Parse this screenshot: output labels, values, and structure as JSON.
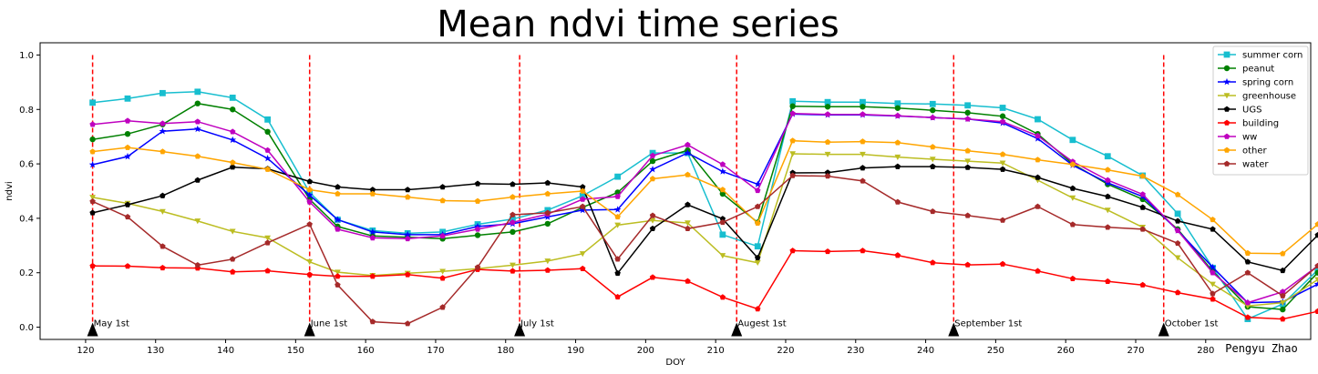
{
  "chart_data": {
    "type": "line",
    "title": "Mean ndvi time series",
    "xlabel": "DOY",
    "ylabel": "ndvi",
    "xlim": [
      113.5,
      295
    ],
    "ylim": [
      -0.045,
      1.045
    ],
    "xticks": [
      120,
      130,
      140,
      150,
      160,
      170,
      180,
      190,
      200,
      210,
      220,
      230,
      240,
      250,
      260,
      270,
      280
    ],
    "yticks": [
      0.0,
      0.2,
      0.4,
      0.6,
      0.8,
      1.0
    ],
    "ytick_labels": [
      "0.0",
      "0.2",
      "0.4",
      "0.6",
      "0.8",
      "1.0"
    ],
    "grid": false,
    "legend_position": "top-right",
    "x": [
      121,
      126,
      131,
      136,
      141,
      146,
      152,
      156,
      161,
      166,
      171,
      176,
      181,
      186,
      191,
      196,
      201,
      206,
      211,
      216,
      221,
      226,
      231,
      236,
      241,
      246,
      251,
      256,
      261,
      266,
      271,
      276,
      281,
      286,
      291,
      296
    ],
    "series": [
      {
        "name": "summer corn",
        "color": "#17becf",
        "marker": "square",
        "values": [
          0.825,
          0.84,
          0.86,
          0.865,
          0.843,
          0.763,
          0.495,
          0.395,
          0.355,
          0.345,
          0.35,
          0.378,
          0.397,
          0.43,
          0.483,
          0.553,
          0.64,
          0.64,
          0.34,
          0.297,
          0.83,
          0.827,
          0.827,
          0.822,
          0.82,
          0.815,
          0.806,
          0.764,
          0.688,
          0.628,
          0.557,
          0.417,
          0.218,
          0.03,
          0.085,
          0.21
        ]
      },
      {
        "name": "peanut",
        "color": "#008000",
        "marker": "circle",
        "values": [
          0.69,
          0.71,
          0.745,
          0.822,
          0.8,
          0.718,
          0.47,
          0.37,
          0.335,
          0.33,
          0.325,
          0.338,
          0.35,
          0.38,
          0.44,
          0.495,
          0.61,
          0.65,
          0.49,
          0.385,
          0.812,
          0.81,
          0.81,
          0.805,
          0.797,
          0.788,
          0.775,
          0.71,
          0.6,
          0.525,
          0.47,
          0.36,
          0.205,
          0.075,
          0.065,
          0.2
        ]
      },
      {
        "name": "spring corn",
        "color": "#0000ff",
        "marker": "star",
        "values": [
          0.597,
          0.627,
          0.72,
          0.728,
          0.688,
          0.62,
          0.485,
          0.395,
          0.35,
          0.34,
          0.34,
          0.37,
          0.38,
          0.405,
          0.43,
          0.432,
          0.58,
          0.64,
          0.572,
          0.525,
          0.783,
          0.78,
          0.78,
          0.776,
          0.77,
          0.765,
          0.75,
          0.693,
          0.595,
          0.53,
          0.48,
          0.355,
          0.22,
          0.09,
          0.093,
          0.158
        ]
      },
      {
        "name": "greenhouse",
        "color": "#bcbd22",
        "marker": "triangle-down",
        "values": [
          0.477,
          0.455,
          0.425,
          0.39,
          0.352,
          0.328,
          0.24,
          0.202,
          0.19,
          0.198,
          0.205,
          0.215,
          0.228,
          0.243,
          0.27,
          0.375,
          0.392,
          0.383,
          0.263,
          0.237,
          0.637,
          0.635,
          0.635,
          0.625,
          0.617,
          0.61,
          0.603,
          0.54,
          0.475,
          0.43,
          0.367,
          0.255,
          0.158,
          0.078,
          0.09,
          0.175
        ]
      },
      {
        "name": "UGS",
        "color": "#000000",
        "marker": "pentagon",
        "values": [
          0.42,
          0.45,
          0.483,
          0.54,
          0.588,
          0.582,
          0.535,
          0.515,
          0.505,
          0.505,
          0.515,
          0.527,
          0.525,
          0.53,
          0.515,
          0.198,
          0.362,
          0.45,
          0.398,
          0.255,
          0.567,
          0.568,
          0.585,
          0.59,
          0.59,
          0.587,
          0.58,
          0.55,
          0.51,
          0.48,
          0.44,
          0.39,
          0.36,
          0.24,
          0.208,
          0.338
        ]
      },
      {
        "name": "building",
        "color": "#ff0000",
        "marker": "pentagon",
        "values": [
          0.225,
          0.224,
          0.218,
          0.217,
          0.203,
          0.207,
          0.193,
          0.187,
          0.187,
          0.193,
          0.18,
          0.212,
          0.206,
          0.209,
          0.215,
          0.111,
          0.183,
          0.169,
          0.11,
          0.067,
          0.281,
          0.278,
          0.281,
          0.264,
          0.237,
          0.229,
          0.232,
          0.206,
          0.178,
          0.168,
          0.155,
          0.127,
          0.103,
          0.036,
          0.03,
          0.058
        ]
      },
      {
        "name": "ww",
        "color": "#bf00bf",
        "marker": "pentagon",
        "values": [
          0.745,
          0.758,
          0.748,
          0.755,
          0.718,
          0.65,
          0.46,
          0.36,
          0.328,
          0.325,
          0.335,
          0.36,
          0.385,
          0.415,
          0.47,
          0.48,
          0.63,
          0.67,
          0.598,
          0.502,
          0.785,
          0.782,
          0.782,
          0.777,
          0.77,
          0.765,
          0.755,
          0.703,
          0.608,
          0.54,
          0.488,
          0.355,
          0.2,
          0.09,
          0.13,
          0.225
        ]
      },
      {
        "name": "other",
        "color": "#ffa500",
        "marker": "pentagon",
        "values": [
          0.645,
          0.66,
          0.645,
          0.628,
          0.605,
          0.58,
          0.505,
          0.49,
          0.49,
          0.478,
          0.465,
          0.463,
          0.478,
          0.49,
          0.5,
          0.405,
          0.545,
          0.56,
          0.505,
          0.382,
          0.685,
          0.68,
          0.682,
          0.678,
          0.662,
          0.648,
          0.635,
          0.615,
          0.598,
          0.578,
          0.555,
          0.487,
          0.395,
          0.272,
          0.27,
          0.378
        ]
      },
      {
        "name": "water",
        "color": "#a52a2a",
        "marker": "pentagon",
        "values": [
          0.462,
          0.405,
          0.297,
          0.228,
          0.25,
          0.31,
          0.378,
          0.155,
          0.02,
          0.013,
          0.073,
          0.22,
          0.413,
          0.42,
          0.443,
          0.25,
          0.41,
          0.362,
          0.385,
          0.443,
          0.557,
          0.555,
          0.537,
          0.46,
          0.425,
          0.41,
          0.393,
          0.443,
          0.377,
          0.367,
          0.36,
          0.308,
          0.123,
          0.2,
          0.115,
          0.225
        ]
      }
    ],
    "month_markers": [
      {
        "x": 121,
        "label": "May 1st"
      },
      {
        "x": 152,
        "label": "June 1st"
      },
      {
        "x": 182,
        "label": "July 1st"
      },
      {
        "x": 213,
        "label": "Augest 1st"
      },
      {
        "x": 244,
        "label": "September 1st"
      },
      {
        "x": 274,
        "label": "October 1st"
      }
    ],
    "marker_line_color": "#ff0000",
    "marker_triangle_color": "#000000",
    "signature": "Pengyu  Zhao"
  }
}
